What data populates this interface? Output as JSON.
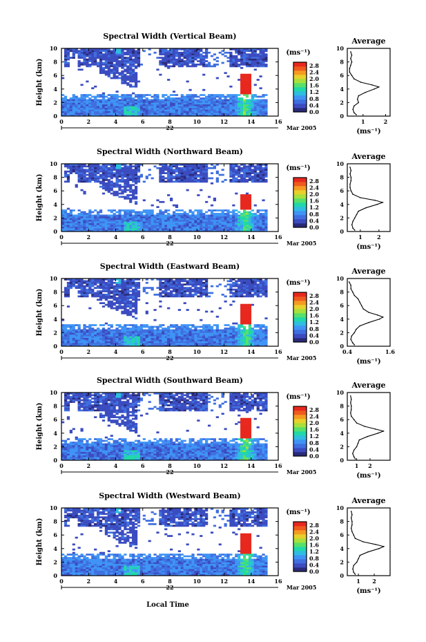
{
  "colors": {
    "colormap": [
      "#2a2a78",
      "#3b4cc0",
      "#3f6fe0",
      "#3f94f5",
      "#2fbde0",
      "#20d8a8",
      "#57e06a",
      "#a8e03c",
      "#e8d02a",
      "#f59a22",
      "#ef5a1e",
      "#e8281e"
    ]
  },
  "figure": {
    "x_axis_label": "Local Time",
    "date_day": "22",
    "date_month_year": "Mar 2005"
  },
  "chart_data": [
    {
      "type": "heatmap",
      "title": "Spectral Width (Vertical Beam)",
      "ylabel": "Height (km)",
      "x_ticks": [
        "0",
        "2",
        "4",
        "6",
        "8",
        "10",
        "12",
        "14",
        "16"
      ],
      "y_ticks": [
        "0",
        "2",
        "4",
        "6",
        "8",
        "10"
      ],
      "xlim": [
        0,
        16
      ],
      "ylim": [
        0,
        10
      ],
      "colorbar": {
        "unit": "(ms⁻¹)",
        "ticks": [
          "0.0",
          "0.4",
          "0.8",
          "1.2",
          "1.6",
          "2.0",
          "2.4",
          "2.8"
        ],
        "range": [
          0.0,
          3.0
        ]
      },
      "profile": {
        "title": "Average",
        "xlabel": "(ms⁻¹)",
        "x_ticks": [
          "1",
          "2"
        ],
        "xlim": [
          0.3,
          2.2
        ],
        "y_ticks": [
          "0",
          "2",
          "4",
          "6",
          "8",
          "10"
        ],
        "heights": [
          0.2,
          0.5,
          1.0,
          1.5,
          2.0,
          2.5,
          3.0,
          3.5,
          4.0,
          4.3,
          4.6,
          5.0,
          5.5,
          6.0,
          6.5,
          7.0,
          7.5,
          8.0,
          8.5,
          9.0,
          9.5
        ],
        "values": [
          0.7,
          0.6,
          0.55,
          0.6,
          0.8,
          0.75,
          0.8,
          1.1,
          1.5,
          1.7,
          1.4,
          0.9,
          0.6,
          0.5,
          0.4,
          0.4,
          0.45,
          0.5,
          0.45,
          0.5,
          0.45
        ]
      }
    },
    {
      "type": "heatmap",
      "title": "Spectral Width (Northward Beam)",
      "ylabel": "Height (km)",
      "x_ticks": [
        "0",
        "2",
        "4",
        "6",
        "8",
        "10",
        "12",
        "14",
        "16"
      ],
      "y_ticks": [
        "0",
        "2",
        "4",
        "6",
        "8",
        "10"
      ],
      "xlim": [
        0,
        16
      ],
      "ylim": [
        0,
        10
      ],
      "colorbar": {
        "unit": "(ms⁻¹)",
        "ticks": [
          "0.0",
          "0.4",
          "0.8",
          "1.2",
          "1.6",
          "2.0",
          "2.4",
          "2.8"
        ],
        "range": [
          0.0,
          3.0
        ]
      },
      "profile": {
        "title": "Average",
        "xlabel": "(ms⁻¹)",
        "x_ticks": [
          "1",
          "2"
        ],
        "xlim": [
          0.3,
          2.6
        ],
        "y_ticks": [
          "0",
          "2",
          "4",
          "6",
          "8",
          "10"
        ],
        "heights": [
          0.2,
          0.5,
          1.0,
          1.5,
          2.0,
          2.5,
          3.0,
          3.5,
          4.0,
          4.3,
          4.6,
          5.0,
          5.5,
          6.0,
          6.5,
          7.0,
          7.5,
          8.0,
          8.5,
          9.0,
          9.5
        ],
        "values": [
          0.7,
          0.6,
          0.55,
          0.6,
          0.7,
          0.8,
          0.9,
          1.3,
          1.9,
          2.2,
          1.8,
          1.0,
          0.6,
          0.5,
          0.45,
          0.45,
          0.5,
          0.5,
          0.45,
          0.5,
          0.45
        ]
      }
    },
    {
      "type": "heatmap",
      "title": "Spectral Width (Eastward Beam)",
      "ylabel": "Height (km)",
      "x_ticks": [
        "0",
        "2",
        "4",
        "6",
        "8",
        "10",
        "12",
        "14",
        "16"
      ],
      "y_ticks": [
        "0",
        "2",
        "4",
        "6",
        "8",
        "10"
      ],
      "xlim": [
        0,
        16
      ],
      "ylim": [
        0,
        10
      ],
      "colorbar": {
        "unit": "(ms⁻¹)",
        "ticks": [
          "0.0",
          "0.4",
          "0.8",
          "1.2",
          "1.6",
          "2.0",
          "2.4",
          "2.8"
        ],
        "range": [
          0.0,
          3.0
        ]
      },
      "profile": {
        "title": "Average",
        "xlabel": "(ms⁻¹)",
        "x_ticks": [
          "0.4",
          "1.6"
        ],
        "xlim": [
          0.4,
          1.6
        ],
        "y_ticks": [
          "0",
          "2",
          "4",
          "6",
          "8",
          "10"
        ],
        "heights": [
          0.2,
          0.5,
          1.0,
          1.5,
          2.0,
          2.5,
          3.0,
          3.5,
          4.0,
          4.3,
          4.6,
          5.0,
          5.5,
          6.0,
          6.5,
          7.0,
          7.5,
          8.0,
          8.5,
          9.0,
          9.5
        ],
        "values": [
          0.6,
          0.55,
          0.5,
          0.52,
          0.6,
          0.65,
          0.75,
          1.0,
          1.3,
          1.4,
          1.25,
          1.0,
          0.85,
          0.8,
          0.75,
          0.7,
          0.6,
          0.55,
          0.5,
          0.5,
          0.45
        ]
      }
    },
    {
      "type": "heatmap",
      "title": "Spectral Width (Southward Beam)",
      "ylabel": "Height (km)",
      "x_ticks": [
        "0",
        "2",
        "4",
        "6",
        "8",
        "10",
        "12",
        "14",
        "16"
      ],
      "y_ticks": [
        "0",
        "2",
        "4",
        "6",
        "8",
        "10"
      ],
      "xlim": [
        0,
        16
      ],
      "ylim": [
        0,
        10
      ],
      "colorbar": {
        "unit": "(ms⁻¹)",
        "ticks": [
          "0.0",
          "0.4",
          "0.8",
          "1.2",
          "1.6",
          "2.0",
          "2.4",
          "2.8"
        ],
        "range": [
          0.0,
          3.0
        ]
      },
      "profile": {
        "title": "Average",
        "xlabel": "(ms⁻¹)",
        "x_ticks": [
          "1",
          "2"
        ],
        "xlim": [
          0.3,
          3.5
        ],
        "y_ticks": [
          "0",
          "2",
          "4",
          "6",
          "8",
          "10"
        ],
        "heights": [
          0.2,
          0.5,
          1.0,
          1.5,
          2.0,
          2.5,
          3.0,
          3.5,
          4.0,
          4.3,
          4.6,
          5.0,
          5.5,
          6.0,
          6.5,
          7.0,
          7.5,
          8.0,
          8.5,
          9.0,
          9.5
        ],
        "values": [
          0.9,
          0.8,
          0.7,
          0.8,
          1.0,
          1.1,
          1.2,
          1.8,
          2.6,
          3.0,
          2.4,
          1.6,
          1.0,
          0.8,
          0.6,
          0.55,
          0.6,
          0.6,
          0.55,
          0.6,
          0.55
        ]
      }
    },
    {
      "type": "heatmap",
      "title": "Spectral Width (Westward Beam)",
      "ylabel": "Height (km)",
      "x_ticks": [
        "0",
        "2",
        "4",
        "6",
        "8",
        "10",
        "12",
        "14",
        "16"
      ],
      "y_ticks": [
        "0",
        "2",
        "4",
        "6",
        "8",
        "10"
      ],
      "xlim": [
        0,
        16
      ],
      "ylim": [
        0,
        10
      ],
      "colorbar": {
        "unit": "(ms⁻¹)",
        "ticks": [
          "0.0",
          "0.4",
          "0.8",
          "1.2",
          "1.6",
          "2.0",
          "2.4",
          "2.8"
        ],
        "range": [
          0.0,
          3.0
        ]
      },
      "profile": {
        "title": "Average",
        "xlabel": "(ms⁻¹)",
        "x_ticks": [
          "1",
          "2"
        ],
        "xlim": [
          0.3,
          3.0
        ],
        "y_ticks": [
          "0",
          "2",
          "4",
          "6",
          "8",
          "10"
        ],
        "heights": [
          0.2,
          0.5,
          1.0,
          1.5,
          2.0,
          2.5,
          3.0,
          3.5,
          4.0,
          4.3,
          4.6,
          5.0,
          5.5,
          6.0,
          6.5,
          7.0,
          7.5,
          8.0,
          8.5,
          9.0,
          9.5
        ],
        "values": [
          0.8,
          0.7,
          0.65,
          0.7,
          0.9,
          1.0,
          1.1,
          1.6,
          2.3,
          2.6,
          2.1,
          1.3,
          0.8,
          0.7,
          0.6,
          0.55,
          0.6,
          0.6,
          0.55,
          0.6,
          0.55
        ]
      }
    }
  ]
}
